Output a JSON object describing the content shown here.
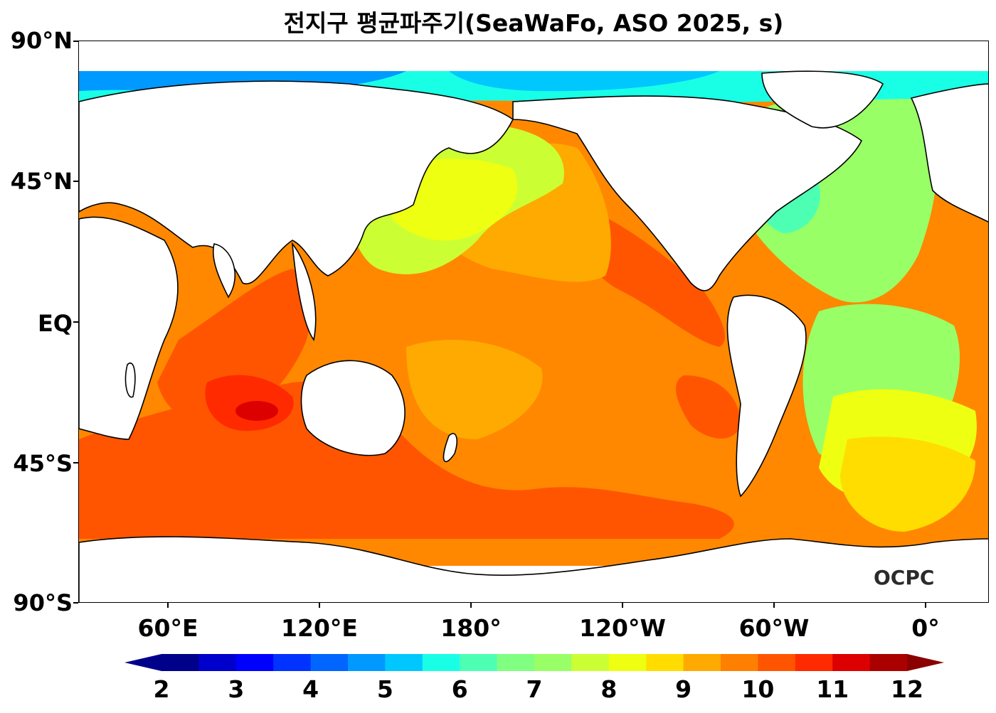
{
  "title": "전지구 평균파주기(SeaWaFo, ASO 2025, s)",
  "watermark": "OCPC",
  "axes": {
    "lat_labels": [
      "90°N",
      "45°N",
      "EQ",
      "45°S",
      "90°S"
    ],
    "lon_labels": [
      "60°E",
      "120°E",
      "180°",
      "120°W",
      "60°W",
      "0°"
    ]
  },
  "colorbar": {
    "levels": [
      2,
      2.5,
      3,
      3.5,
      4,
      4.5,
      5,
      5.5,
      6,
      6.5,
      7,
      7.5,
      8,
      8.5,
      9,
      9.5,
      10,
      10.5,
      11,
      11.5,
      12
    ],
    "tick_labels": [
      "2",
      "3",
      "4",
      "5",
      "6",
      "7",
      "8",
      "9",
      "10",
      "11",
      "12"
    ],
    "colors": [
      "#00008b",
      "#0000cd",
      "#0000ff",
      "#0033ff",
      "#0066ff",
      "#0099ff",
      "#00c8ff",
      "#19ffe6",
      "#4dffb3",
      "#80ff80",
      "#99ff66",
      "#ccff33",
      "#eeff11",
      "#ffdd00",
      "#ffaa00",
      "#ff7f00",
      "#ff5500",
      "#ff2a00",
      "#dd0000",
      "#aa0000"
    ],
    "extend": "both",
    "under_color": "#00008b",
    "over_color": "#8b0000"
  },
  "field_colors": {
    "ocean_base": "#ff8800",
    "land": "#ffffff",
    "coastline": "#000000"
  }
}
